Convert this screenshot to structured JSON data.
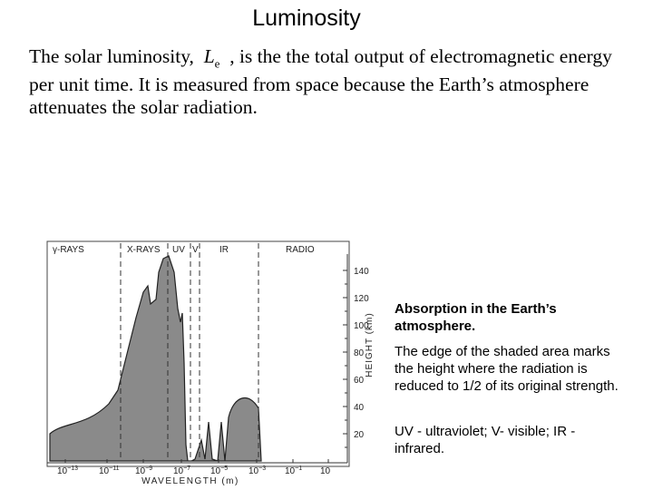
{
  "header": {
    "title": "Luminosity"
  },
  "paragraph": {
    "lead": "The solar luminosity,",
    "symbol": "L",
    "subscript": "e",
    "line1_rest": ", is the the total output of electromagnetic energy",
    "lines": [
      "per unit time. It is measured from space because the Earth’s atmosphere",
      "attenuates the solar radiation."
    ]
  },
  "figure": {
    "bands": [
      "γ-RAYS",
      "X-RAYS",
      "UV",
      "V",
      "IR",
      "RADIO"
    ],
    "height_ticks": [
      "20",
      "40",
      "60",
      "80",
      "100",
      "120",
      "140"
    ],
    "height_label": "HEIGHT (km)",
    "wavelength_ticks": [
      {
        "base": "10",
        "exponent": "−13"
      },
      {
        "base": "10",
        "exponent": "−11"
      },
      {
        "base": "10",
        "exponent": "−9"
      },
      {
        "base": "10",
        "exponent": "−7"
      },
      {
        "base": "10",
        "exponent": "−5"
      },
      {
        "base": "10",
        "exponent": "−3"
      },
      {
        "base": "10",
        "exponent": "−1"
      },
      {
        "base": "10",
        "exponent": ""
      }
    ],
    "wavelength_label": "WAVELENGTH (m)"
  },
  "caption": {
    "heading": "Absorption in the Earth’s atmosphere.",
    "body": "The edge of the shaded area marks the height where the radiation is reduced to 1/2 of its original strength.",
    "note": "UV - ultraviolet; V- visible; IR - infrared."
  }
}
